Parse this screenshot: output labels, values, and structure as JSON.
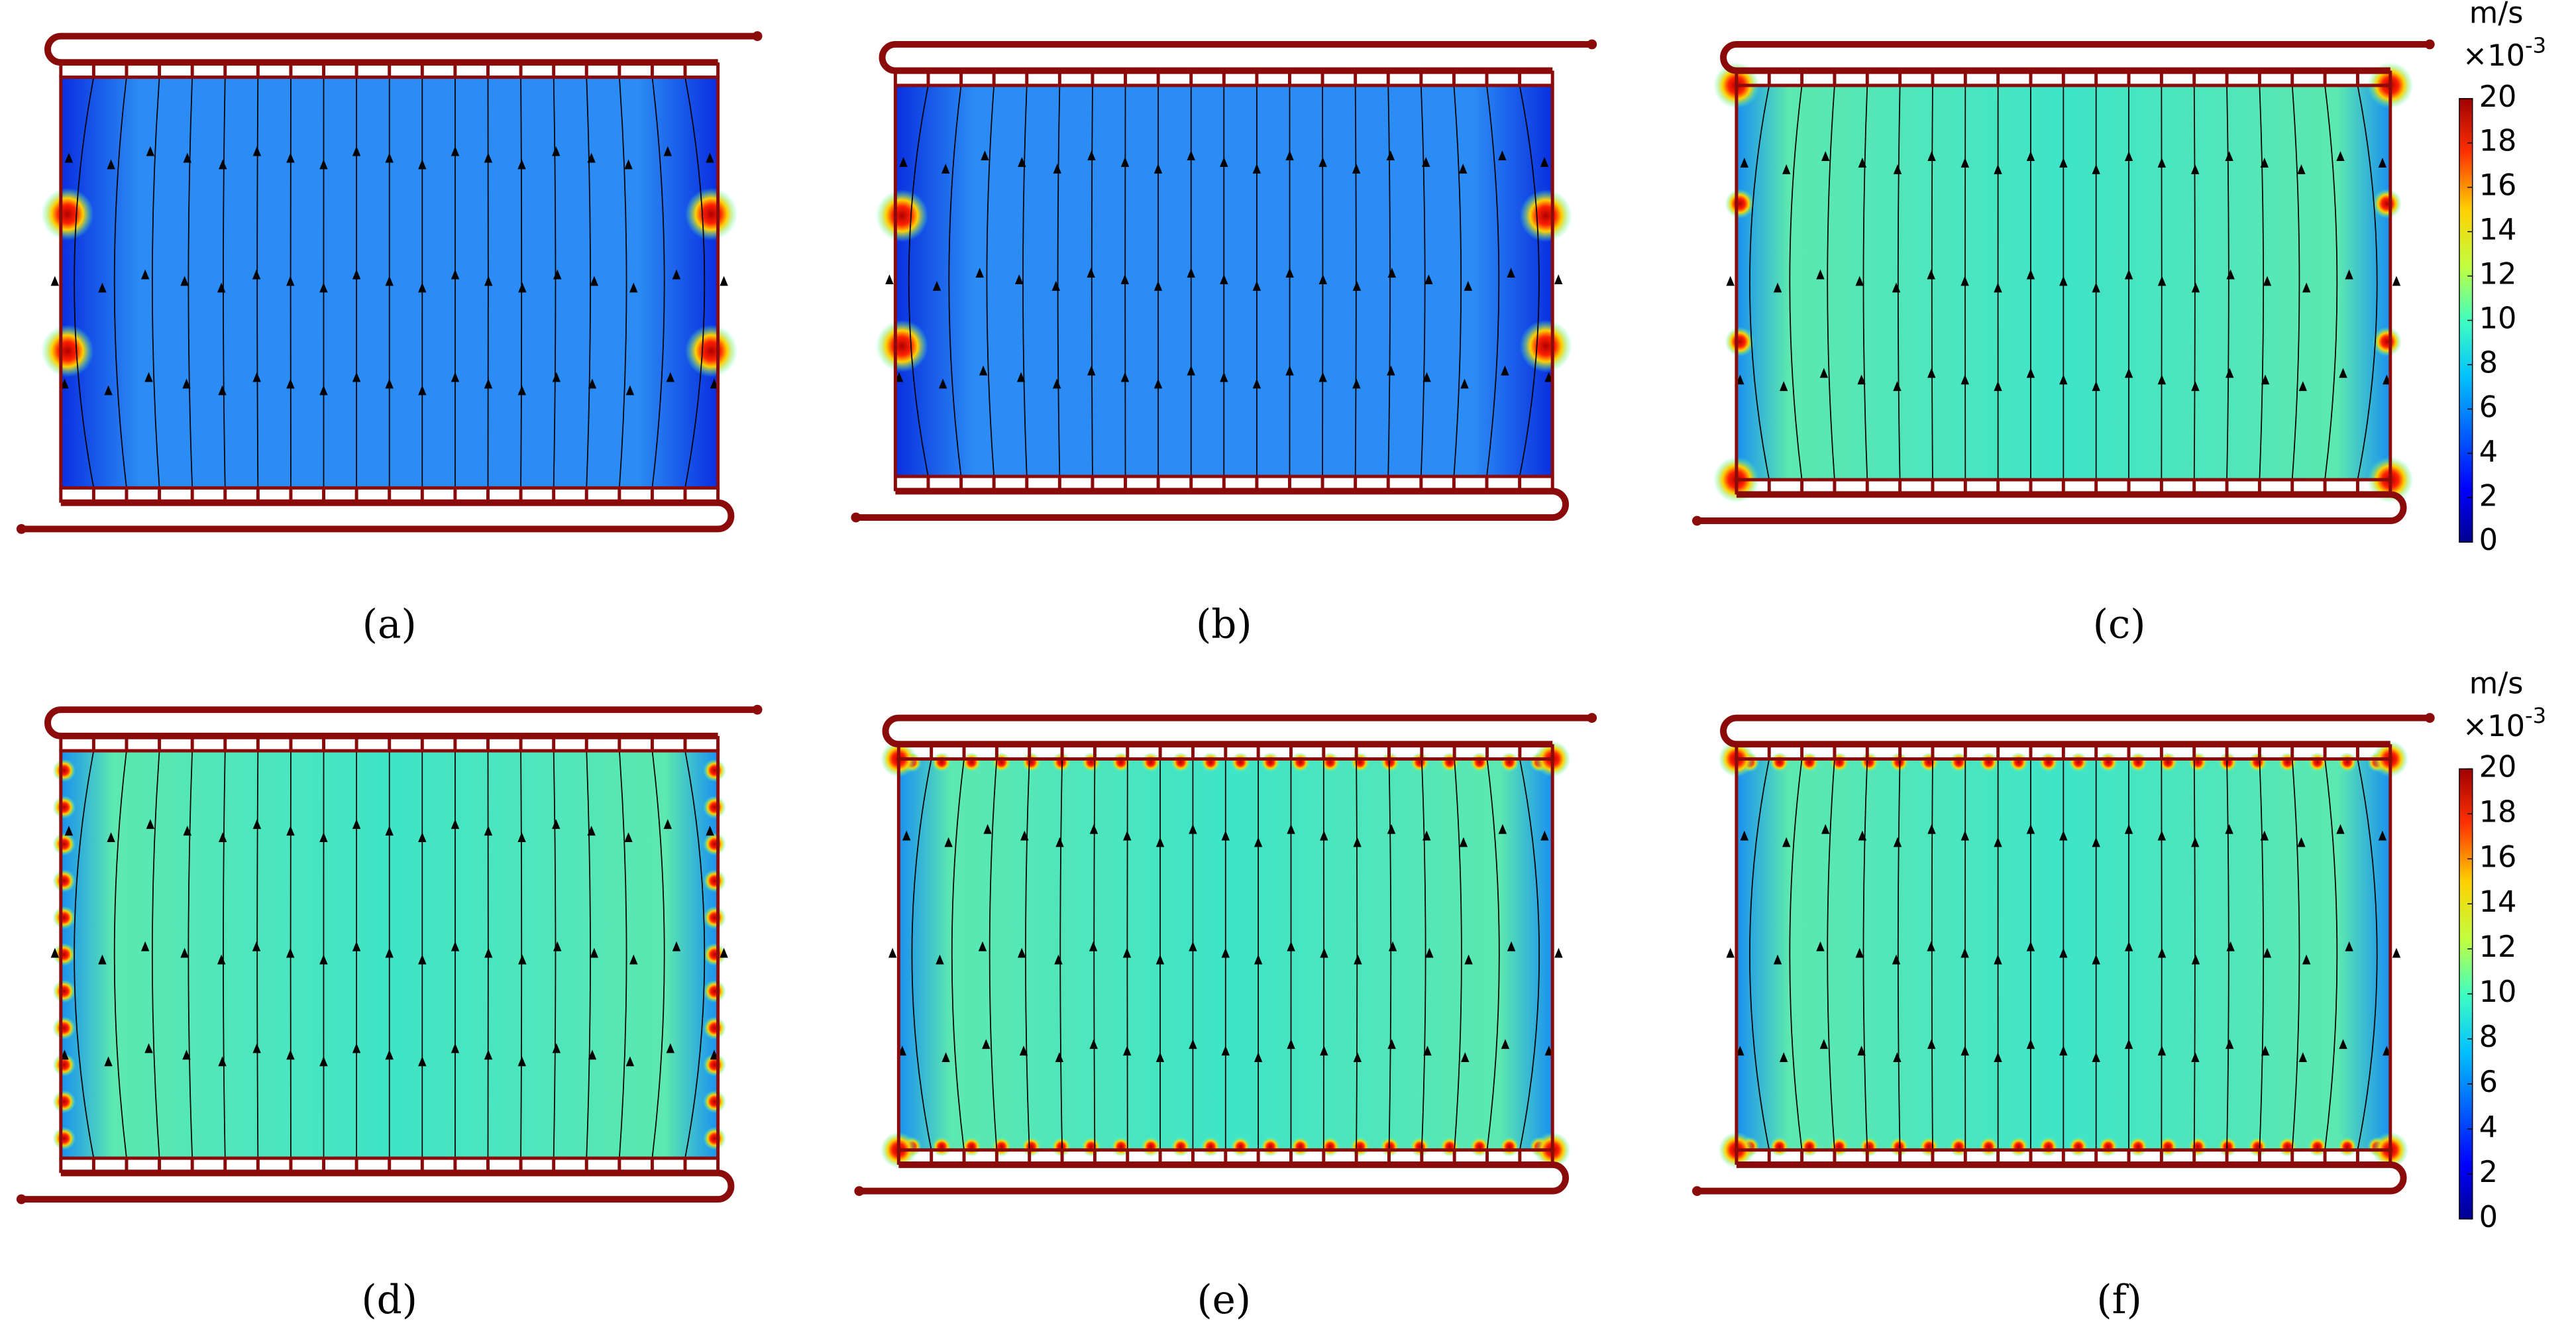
{
  "panels": [
    {
      "label": "(a)"
    },
    {
      "label": "(b)"
    },
    {
      "label": "(c)"
    },
    {
      "label": "(d)"
    },
    {
      "label": "(e)"
    },
    {
      "label": "(f)"
    }
  ],
  "colorbars": [
    {
      "unit": "m/s",
      "multiplier": "×10",
      "exponent": "-3",
      "range": [
        0,
        20
      ],
      "ticks": [
        0,
        2,
        4,
        6,
        8,
        10,
        12,
        14,
        16,
        18,
        20
      ]
    },
    {
      "unit": "m/s",
      "multiplier": "×10",
      "exponent": "-3",
      "range": [
        0,
        20
      ],
      "ticks": [
        0,
        2,
        4,
        6,
        8,
        10,
        12,
        14,
        16,
        18,
        20
      ]
    }
  ]
}
